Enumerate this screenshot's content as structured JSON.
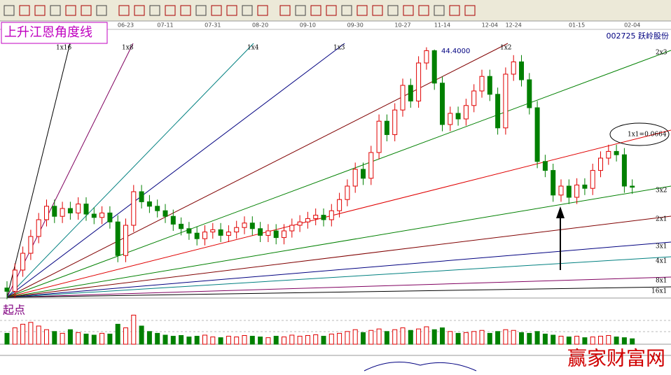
{
  "chart_data": {
    "type": "candlestick",
    "title": "上升江恩角度线",
    "stock": "002725 跃岭股份",
    "start_label": "起点",
    "watermark": "赢家财富网",
    "annotations": [
      "44.4000",
      "1x1=0.0664"
    ],
    "fan_labels": [
      "1x16",
      "1x8",
      "1x4",
      "1x3",
      "1x2",
      "2x3",
      "1x1",
      "3x2",
      "2x1",
      "3x1",
      "4x1",
      "8x1",
      "16x1"
    ],
    "up_color": "#e00000",
    "down_color": "#008000",
    "ylim": [
      22,
      46
    ],
    "categories": [
      null,
      null,
      null,
      null,
      null,
      null,
      null,
      null,
      null,
      null,
      null,
      null,
      null,
      null,
      null,
      "06-23",
      null,
      null,
      null,
      null,
      "07-11",
      null,
      null,
      null,
      null,
      null,
      "07-31",
      null,
      null,
      null,
      null,
      null,
      "08-20",
      null,
      null,
      null,
      null,
      null,
      "09-10",
      null,
      null,
      null,
      null,
      null,
      "09-30",
      null,
      null,
      null,
      null,
      null,
      "10-27",
      null,
      null,
      null,
      null,
      "11-14",
      null,
      null,
      null,
      null,
      null,
      "12-04",
      null,
      null,
      "12-24",
      null,
      null,
      null,
      null,
      null,
      null,
      null,
      "01-15",
      null,
      null,
      null,
      null,
      null,
      null,
      "02-04"
    ],
    "open": [
      22.9,
      22.6,
      24.5,
      26.0,
      27.5,
      29.0,
      30.2,
      29.3,
      30.0,
      29.6,
      30.4,
      29.5,
      29.2,
      29.6,
      28.8,
      25.8,
      28.5,
      31.5,
      30.6,
      30.2,
      29.8,
      29.3,
      28.6,
      28.2,
      27.8,
      27.3,
      27.9,
      28.1,
      27.6,
      27.9,
      28.3,
      28.7,
      28.2,
      27.6,
      28.0,
      27.4,
      28.0,
      28.5,
      28.8,
      29.1,
      29.4,
      29.0,
      29.8,
      30.8,
      32.0,
      33.5,
      32.7,
      35.0,
      37.8,
      36.6,
      38.8,
      41.0,
      39.6,
      43.0,
      44.1,
      41.2,
      37.5,
      38.5,
      38.0,
      39.2,
      40.5,
      41.8,
      40.2,
      37.2,
      42.0,
      43.1,
      41.5,
      39.0,
      34.2,
      33.4,
      31.2,
      32.0,
      31.0,
      32.1,
      31.8,
      33.4,
      34.5,
      35.1,
      34.8,
      32.0
    ],
    "high": [
      23.5,
      25.1,
      26.6,
      28.1,
      29.6,
      30.8,
      30.8,
      30.6,
      30.6,
      31.0,
      31.0,
      30.1,
      30.2,
      30.2,
      29.4,
      29.1,
      32.1,
      32.1,
      31.2,
      30.8,
      30.4,
      29.9,
      29.2,
      28.8,
      28.4,
      28.5,
      28.7,
      28.7,
      28.5,
      28.9,
      29.3,
      29.3,
      28.8,
      28.6,
      28.6,
      28.6,
      29.1,
      29.4,
      29.7,
      30.0,
      30.0,
      30.4,
      31.4,
      32.6,
      34.1,
      34.1,
      35.6,
      38.4,
      38.4,
      39.4,
      41.6,
      41.6,
      43.6,
      44.4,
      44.2,
      41.8,
      39.1,
      39.1,
      39.8,
      41.1,
      42.4,
      42.4,
      40.8,
      42.6,
      43.7,
      43.7,
      42.1,
      39.6,
      34.8,
      34.0,
      32.6,
      32.6,
      32.7,
      32.7,
      34.0,
      35.1,
      35.7,
      35.7,
      35.4,
      32.6
    ],
    "low": [
      21.9,
      22.0,
      23.9,
      25.4,
      26.9,
      28.4,
      28.7,
      28.7,
      29.0,
      29.0,
      28.9,
      28.6,
      28.6,
      28.2,
      25.2,
      25.2,
      27.9,
      30.0,
      29.6,
      29.2,
      28.7,
      28.0,
      27.6,
      27.2,
      26.7,
      26.7,
      27.3,
      27.0,
      27.0,
      27.3,
      27.7,
      27.6,
      27.0,
      27.0,
      26.8,
      26.8,
      27.4,
      27.9,
      28.2,
      28.5,
      28.4,
      28.4,
      29.2,
      30.2,
      31.4,
      32.1,
      32.1,
      34.4,
      36.0,
      36.0,
      38.2,
      39.0,
      39.0,
      42.4,
      40.6,
      36.9,
      36.9,
      37.4,
      37.4,
      38.6,
      39.9,
      39.6,
      36.6,
      36.6,
      41.4,
      40.9,
      38.4,
      33.6,
      32.8,
      30.6,
      30.6,
      30.4,
      30.4,
      31.2,
      31.2,
      32.8,
      33.9,
      34.2,
      31.4,
      31.3
    ],
    "close": [
      22.6,
      24.5,
      26.0,
      27.5,
      29.0,
      30.2,
      29.3,
      30.0,
      29.6,
      30.4,
      29.5,
      29.2,
      29.6,
      28.8,
      25.8,
      28.5,
      31.5,
      30.6,
      30.2,
      29.8,
      29.3,
      28.6,
      28.2,
      27.8,
      27.3,
      27.9,
      28.1,
      27.6,
      27.9,
      28.3,
      28.7,
      28.2,
      27.6,
      28.0,
      27.4,
      28.0,
      28.5,
      28.8,
      29.1,
      29.4,
      29.0,
      29.8,
      30.8,
      32.0,
      33.5,
      32.7,
      35.0,
      37.8,
      36.6,
      38.8,
      41.0,
      39.6,
      43.0,
      44.1,
      41.2,
      37.5,
      38.5,
      38.0,
      39.2,
      40.5,
      41.8,
      40.2,
      37.2,
      42.0,
      43.1,
      41.5,
      39.0,
      34.2,
      33.4,
      31.2,
      32.0,
      31.0,
      32.1,
      31.8,
      33.4,
      34.5,
      35.1,
      34.8,
      32.0,
      31.9
    ],
    "volume": [
      30,
      45,
      55,
      60,
      50,
      40,
      35,
      30,
      40,
      32,
      28,
      25,
      30,
      28,
      55,
      45,
      80,
      50,
      35,
      30,
      25,
      22,
      24,
      20,
      22,
      25,
      20,
      18,
      22,
      20,
      24,
      22,
      20,
      18,
      22,
      20,
      25,
      22,
      24,
      26,
      22,
      28,
      30,
      35,
      40,
      32,
      38,
      42,
      35,
      40,
      45,
      38,
      42,
      48,
      40,
      45,
      35,
      30,
      32,
      35,
      38,
      30,
      35,
      40,
      38,
      32,
      30,
      35,
      28,
      25,
      22,
      20,
      22,
      18,
      20,
      22,
      24,
      20,
      18,
      15
    ],
    "vlim": [
      0,
      100
    ]
  }
}
